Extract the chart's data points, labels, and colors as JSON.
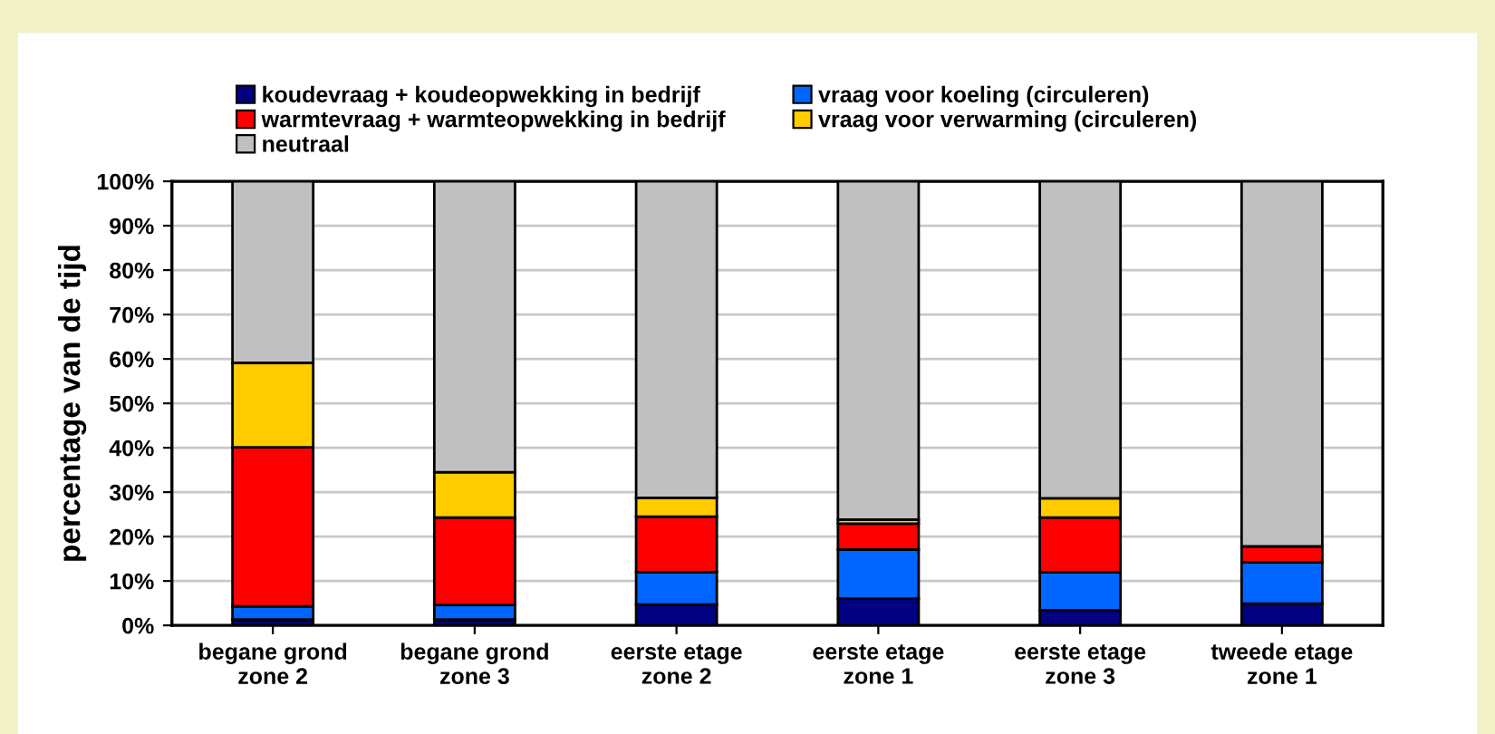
{
  "chart_data": {
    "type": "bar",
    "stacked": true,
    "ylabel": "percentage van de tijd",
    "categories": [
      "begane grond\nzone 2",
      "begane grond\nzone 3",
      "eerste etage\nzone 2",
      "eerste etage\nzone 1",
      "eerste etage\nzone 3",
      "tweede etage\nzone 1"
    ],
    "series": [
      {
        "name": "koudevraag + koudeopwekking in bedrijf",
        "color": "#000080",
        "values": [
          1.3,
          1.3,
          4.7,
          6.0,
          3.4,
          4.9
        ]
      },
      {
        "name": "vraag voor koeling (circuleren)",
        "color": "#0066ff",
        "values": [
          3.0,
          3.3,
          7.3,
          11.1,
          8.6,
          9.3
        ]
      },
      {
        "name": "warmtevraag + warmteopwekking in bedrijf",
        "color": "#ff0000",
        "values": [
          35.8,
          19.7,
          12.5,
          5.8,
          12.3,
          3.6
        ]
      },
      {
        "name": "vraag voor verwarming (circuleren)",
        "color": "#ffcc00",
        "values": [
          19.0,
          10.2,
          4.2,
          0.9,
          4.3,
          0
        ]
      },
      {
        "name": "neutraal",
        "color": "#c0c0c0",
        "values": [
          40.9,
          65.5,
          71.3,
          76.2,
          71.4,
          82.2
        ]
      }
    ],
    "ylim": [
      0,
      100
    ],
    "yticks": [
      {
        "value": 0,
        "label": "0%"
      },
      {
        "value": 10,
        "label": "10%"
      },
      {
        "value": 20,
        "label": "20%"
      },
      {
        "value": 30,
        "label": "30%"
      },
      {
        "value": 40,
        "label": "40%"
      },
      {
        "value": 50,
        "label": "50%"
      },
      {
        "value": 60,
        "label": "60%"
      },
      {
        "value": 70,
        "label": "70%"
      },
      {
        "value": 80,
        "label": "80%"
      },
      {
        "value": 90,
        "label": "90%"
      },
      {
        "value": 100,
        "label": "100%"
      }
    ],
    "grid": "y",
    "legend": "top"
  }
}
